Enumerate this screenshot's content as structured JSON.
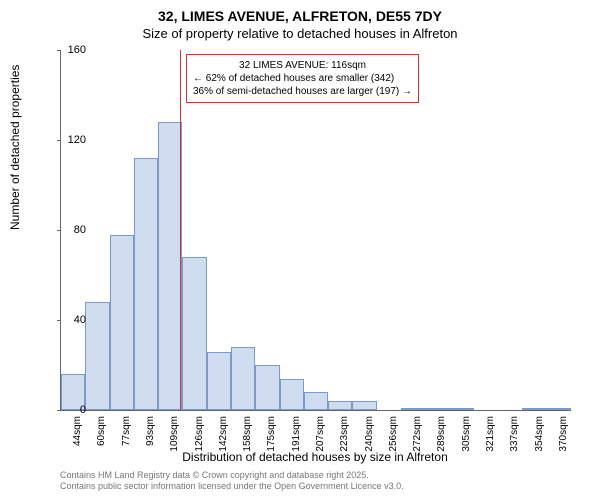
{
  "header": {
    "title": "32, LIMES AVENUE, ALFRETON, DE55 7DY",
    "subtitle": "Size of property relative to detached houses in Alfreton"
  },
  "chart": {
    "type": "histogram",
    "ylabel": "Number of detached properties",
    "xlabel": "Distribution of detached houses by size in Alfreton",
    "ylim": [
      0,
      160
    ],
    "ytick_step": 40,
    "yticks": [
      0,
      40,
      80,
      120,
      160
    ],
    "xticks": [
      "44sqm",
      "60sqm",
      "77sqm",
      "93sqm",
      "109sqm",
      "126sqm",
      "142sqm",
      "158sqm",
      "175sqm",
      "191sqm",
      "207sqm",
      "223sqm",
      "240sqm",
      "256sqm",
      "272sqm",
      "289sqm",
      "305sqm",
      "321sqm",
      "337sqm",
      "354sqm",
      "370sqm"
    ],
    "values": [
      16,
      48,
      78,
      112,
      128,
      68,
      26,
      28,
      20,
      14,
      8,
      4,
      4,
      0,
      1,
      1,
      1,
      0,
      0,
      1,
      1
    ],
    "bar_fill": "#d0ddf0",
    "bar_stroke": "#7a9ac9",
    "axis_color": "#666666",
    "reference": {
      "value_index": 4.4,
      "line_color": "#cc3333",
      "box_lines": [
        "32 LIMES AVENUE: 116sqm",
        "← 62% of detached houses are smaller (342)",
        "36% of semi-detached houses are larger (197) →"
      ]
    }
  },
  "footer": {
    "line1": "Contains HM Land Registry data © Crown copyright and database right 2025.",
    "line2": "Contains public sector information licensed under the Open Government Licence v3.0."
  }
}
